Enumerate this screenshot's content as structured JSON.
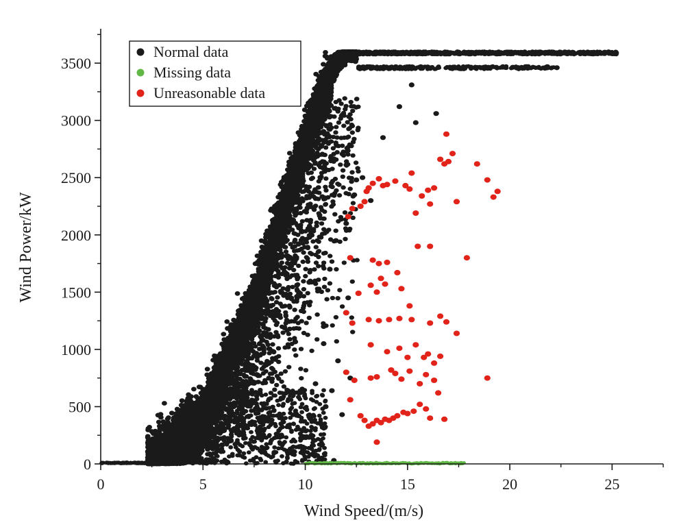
{
  "chart_data": {
    "type": "scatter",
    "xlabel": "Wind Speed/(m/s)",
    "ylabel": "Wind Power/kW",
    "xlim": [
      0,
      27.5
    ],
    "ylim": [
      0,
      3800
    ],
    "x_ticks": [
      0,
      5,
      10,
      15,
      20,
      25
    ],
    "y_ticks": [
      0,
      500,
      1000,
      1500,
      2000,
      2500,
      3000,
      3500
    ],
    "x_tick_labels": [
      "0",
      "5",
      "10",
      "15",
      "20",
      "25"
    ],
    "y_tick_labels": [
      "0",
      "500",
      "1000",
      "1500",
      "2000",
      "2500",
      "3000",
      "3500"
    ],
    "grid": false,
    "legend_position": "top-left",
    "series": [
      {
        "name": "Normal data",
        "color": "#1a1a1a",
        "point_count": 9000,
        "shape": "power-curve band: rises from ~2.5 m/s, rated 3600 kW at ~12 m/s, with scattered underperformance below the curve",
        "band_center": [
          [
            2.5,
            0
          ],
          [
            5,
            400
          ],
          [
            7.5,
            1400
          ],
          [
            10,
            2800
          ],
          [
            11.5,
            3500
          ],
          [
            12,
            3600
          ],
          [
            24,
            3600
          ]
        ],
        "secondary_plateau_kW": 3460,
        "outlier_points": [
          [
            16.4,
            3060
          ],
          [
            15.2,
            3310
          ],
          [
            14.6,
            3120
          ],
          [
            13.8,
            2850
          ],
          [
            15.4,
            2980
          ],
          [
            12.4,
            2350
          ],
          [
            11.2,
            1700
          ],
          [
            12.1,
            1450
          ],
          [
            10.9,
            1200
          ],
          [
            11.6,
            900
          ],
          [
            12.2,
            750
          ],
          [
            10.5,
            700
          ],
          [
            11.0,
            500
          ],
          [
            11.8,
            430
          ],
          [
            10.3,
            250
          ],
          [
            9.7,
            150
          ],
          [
            10.7,
            50
          ],
          [
            11.4,
            30
          ],
          [
            12.5,
            2480
          ],
          [
            13.2,
            2300
          ],
          [
            12.8,
            2500
          ],
          [
            11.5,
            1950
          ],
          [
            12.0,
            2100
          ],
          [
            10.9,
            1050
          ],
          [
            11.3,
            640
          ]
        ],
        "max_point": [
          25.2,
          3590
        ],
        "secondary_max_point": [
          22.3,
          3460
        ]
      },
      {
        "name": "Missing data",
        "color": "#62b846",
        "y_value_kW": 0,
        "x_range": [
          10,
          17.8
        ]
      },
      {
        "name": "Unreasonable data",
        "color": "#e2231a",
        "points": [
          [
            12.1,
            2160
          ],
          [
            12.3,
            2230
          ],
          [
            12.7,
            2250
          ],
          [
            12.9,
            2290
          ],
          [
            13.0,
            2380
          ],
          [
            13.1,
            2410
          ],
          [
            13.3,
            2450
          ],
          [
            13.6,
            2490
          ],
          [
            13.8,
            2430
          ],
          [
            14.0,
            2440
          ],
          [
            14.4,
            2470
          ],
          [
            14.9,
            2430
          ],
          [
            15.2,
            2540
          ],
          [
            15.1,
            2400
          ],
          [
            15.4,
            2190
          ],
          [
            15.7,
            2340
          ],
          [
            16.0,
            2390
          ],
          [
            16.1,
            2270
          ],
          [
            16.3,
            2410
          ],
          [
            16.6,
            2660
          ],
          [
            16.8,
            2620
          ],
          [
            16.9,
            2880
          ],
          [
            17.2,
            2710
          ],
          [
            17.0,
            2640
          ],
          [
            17.4,
            2290
          ],
          [
            18.4,
            2620
          ],
          [
            18.9,
            2480
          ],
          [
            19.2,
            2330
          ],
          [
            19.4,
            2380
          ],
          [
            12.2,
            1800
          ],
          [
            13.3,
            1780
          ],
          [
            13.6,
            1750
          ],
          [
            14.0,
            1760
          ],
          [
            15.5,
            1900
          ],
          [
            16.1,
            1900
          ],
          [
            17.9,
            1800
          ],
          [
            12.6,
            1490
          ],
          [
            13.2,
            1560
          ],
          [
            13.5,
            1500
          ],
          [
            13.7,
            1620
          ],
          [
            13.9,
            1570
          ],
          [
            14.5,
            1670
          ],
          [
            14.7,
            1530
          ],
          [
            15.1,
            1380
          ],
          [
            12.0,
            1320
          ],
          [
            12.3,
            1230
          ],
          [
            13.1,
            1260
          ],
          [
            13.6,
            1250
          ],
          [
            14.1,
            1260
          ],
          [
            14.6,
            1270
          ],
          [
            15.2,
            1260
          ],
          [
            16.1,
            1230
          ],
          [
            16.6,
            1290
          ],
          [
            16.9,
            1240
          ],
          [
            17.4,
            1140
          ],
          [
            13.2,
            1040
          ],
          [
            14.0,
            980
          ],
          [
            14.6,
            1010
          ],
          [
            15.0,
            930
          ],
          [
            15.4,
            1040
          ],
          [
            15.8,
            930
          ],
          [
            16.0,
            960
          ],
          [
            16.3,
            880
          ],
          [
            16.6,
            940
          ],
          [
            12.0,
            800
          ],
          [
            12.4,
            730
          ],
          [
            13.2,
            750
          ],
          [
            13.5,
            760
          ],
          [
            14.2,
            820
          ],
          [
            14.4,
            790
          ],
          [
            14.7,
            740
          ],
          [
            15.1,
            810
          ],
          [
            15.6,
            700
          ],
          [
            15.9,
            780
          ],
          [
            16.3,
            730
          ],
          [
            16.5,
            620
          ],
          [
            18.9,
            750
          ],
          [
            12.2,
            560
          ],
          [
            12.7,
            420
          ],
          [
            12.9,
            380
          ],
          [
            13.1,
            330
          ],
          [
            13.3,
            350
          ],
          [
            13.5,
            380
          ],
          [
            13.7,
            360
          ],
          [
            13.9,
            390
          ],
          [
            14.1,
            380
          ],
          [
            14.3,
            400
          ],
          [
            14.5,
            420
          ],
          [
            14.8,
            450
          ],
          [
            15.0,
            440
          ],
          [
            15.3,
            460
          ],
          [
            15.6,
            520
          ],
          [
            15.9,
            480
          ],
          [
            16.1,
            400
          ],
          [
            16.8,
            390
          ],
          [
            13.5,
            190
          ]
        ]
      }
    ]
  }
}
